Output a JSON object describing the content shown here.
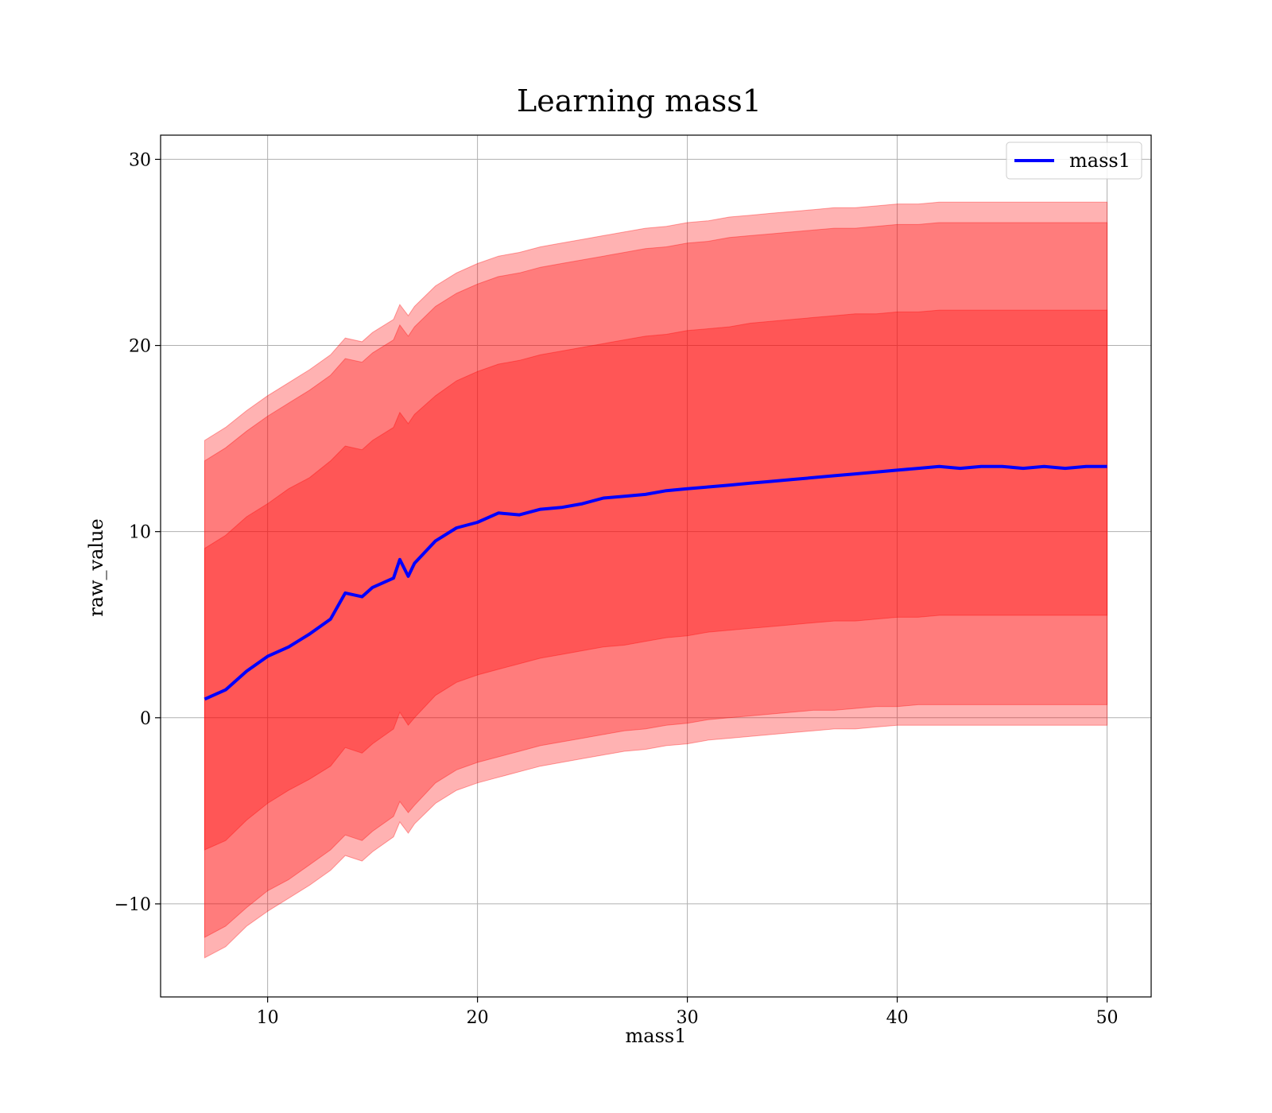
{
  "chart_data": {
    "type": "line",
    "title": "Learning mass1",
    "xlabel": "mass1",
    "ylabel": "raw_value",
    "xlim": [
      4.9,
      52.1
    ],
    "ylim": [
      -15.0,
      31.3
    ],
    "xticks": [
      10,
      20,
      30,
      40,
      50
    ],
    "yticks": [
      -10,
      0,
      10,
      20,
      30
    ],
    "xtick_labels": [
      "10",
      "20",
      "30",
      "40",
      "50"
    ],
    "ytick_labels": [
      "−10",
      "0",
      "10",
      "20",
      "30"
    ],
    "grid": true,
    "legend": {
      "position": "top-right",
      "entries": [
        "mass1"
      ]
    },
    "colors": {
      "line": "#0000ff",
      "band": "#ff0000",
      "grid": "#b0b0b0"
    },
    "x": [
      7,
      8,
      9,
      10,
      11,
      12,
      13,
      13.7,
      14.5,
      15,
      16,
      16.3,
      16.7,
      17,
      18,
      19,
      20,
      21,
      22,
      23,
      24,
      25,
      26,
      27,
      28,
      29,
      30,
      31,
      32,
      33,
      34,
      35,
      36,
      37,
      38,
      39,
      40,
      41,
      42,
      43,
      44,
      45,
      46,
      47,
      48,
      49,
      50
    ],
    "series": [
      {
        "name": "mass1",
        "values": [
          1.0,
          1.5,
          2.5,
          3.3,
          3.8,
          4.5,
          5.3,
          6.7,
          6.5,
          7.0,
          7.5,
          8.5,
          7.6,
          8.3,
          9.5,
          10.2,
          10.5,
          11.0,
          10.9,
          11.2,
          11.3,
          11.5,
          11.8,
          11.9,
          12.0,
          12.2,
          12.3,
          12.4,
          12.5,
          12.6,
          12.7,
          12.8,
          12.9,
          13.0,
          13.1,
          13.2,
          13.3,
          13.4,
          13.5,
          13.4,
          13.5,
          13.5,
          13.4,
          13.5,
          13.4,
          13.5,
          13.5
        ]
      }
    ],
    "bands": [
      {
        "level": "inner",
        "lower": [
          -7.1,
          -6.6,
          -5.5,
          -4.6,
          -3.9,
          -3.3,
          -2.6,
          -1.6,
          -1.9,
          -1.4,
          -0.6,
          0.3,
          -0.4,
          0.0,
          1.2,
          1.9,
          2.3,
          2.6,
          2.9,
          3.2,
          3.4,
          3.6,
          3.8,
          3.9,
          4.1,
          4.3,
          4.4,
          4.6,
          4.7,
          4.8,
          4.9,
          5.0,
          5.1,
          5.2,
          5.2,
          5.3,
          5.4,
          5.4,
          5.5,
          5.5,
          5.5,
          5.5,
          5.5,
          5.5,
          5.5,
          5.5,
          5.5
        ],
        "upper": [
          9.1,
          9.8,
          10.8,
          11.5,
          12.3,
          12.9,
          13.8,
          14.6,
          14.4,
          14.9,
          15.6,
          16.4,
          15.8,
          16.3,
          17.3,
          18.1,
          18.6,
          19.0,
          19.2,
          19.5,
          19.7,
          19.9,
          20.1,
          20.3,
          20.5,
          20.6,
          20.8,
          20.9,
          21.0,
          21.2,
          21.3,
          21.4,
          21.5,
          21.6,
          21.7,
          21.7,
          21.8,
          21.8,
          21.9,
          21.9,
          21.9,
          21.9,
          21.9,
          21.9,
          21.9,
          21.9,
          21.9
        ]
      },
      {
        "level": "middle",
        "lower": [
          -11.8,
          -11.2,
          -10.2,
          -9.3,
          -8.7,
          -7.9,
          -7.1,
          -6.3,
          -6.6,
          -6.1,
          -5.3,
          -4.5,
          -5.1,
          -4.7,
          -3.5,
          -2.8,
          -2.4,
          -2.1,
          -1.8,
          -1.5,
          -1.3,
          -1.1,
          -0.9,
          -0.7,
          -0.6,
          -0.4,
          -0.3,
          -0.1,
          0.0,
          0.1,
          0.2,
          0.3,
          0.4,
          0.4,
          0.5,
          0.6,
          0.6,
          0.7,
          0.7,
          0.7,
          0.7,
          0.7,
          0.7,
          0.7,
          0.7,
          0.7,
          0.7
        ],
        "upper": [
          13.8,
          14.5,
          15.4,
          16.2,
          16.9,
          17.6,
          18.4,
          19.3,
          19.1,
          19.6,
          20.3,
          21.1,
          20.5,
          21.0,
          22.1,
          22.8,
          23.3,
          23.7,
          23.9,
          24.2,
          24.4,
          24.6,
          24.8,
          25.0,
          25.2,
          25.3,
          25.5,
          25.6,
          25.8,
          25.9,
          26.0,
          26.1,
          26.2,
          26.3,
          26.3,
          26.4,
          26.5,
          26.5,
          26.6,
          26.6,
          26.6,
          26.6,
          26.6,
          26.6,
          26.6,
          26.6,
          26.6
        ]
      },
      {
        "level": "outer",
        "lower": [
          -12.9,
          -12.3,
          -11.2,
          -10.4,
          -9.7,
          -9.0,
          -8.2,
          -7.4,
          -7.7,
          -7.2,
          -6.4,
          -5.6,
          -6.2,
          -5.7,
          -4.6,
          -3.9,
          -3.5,
          -3.2,
          -2.9,
          -2.6,
          -2.4,
          -2.2,
          -2.0,
          -1.8,
          -1.7,
          -1.5,
          -1.4,
          -1.2,
          -1.1,
          -1.0,
          -0.9,
          -0.8,
          -0.7,
          -0.6,
          -0.6,
          -0.5,
          -0.4,
          -0.4,
          -0.4,
          -0.4,
          -0.4,
          -0.4,
          -0.4,
          -0.4,
          -0.4,
          -0.4,
          -0.4
        ],
        "upper": [
          14.9,
          15.6,
          16.5,
          17.3,
          18.0,
          18.7,
          19.5,
          20.4,
          20.2,
          20.7,
          21.4,
          22.2,
          21.6,
          22.1,
          23.2,
          23.9,
          24.4,
          24.8,
          25.0,
          25.3,
          25.5,
          25.7,
          25.9,
          26.1,
          26.3,
          26.4,
          26.6,
          26.7,
          26.9,
          27.0,
          27.1,
          27.2,
          27.3,
          27.4,
          27.4,
          27.5,
          27.6,
          27.6,
          27.7,
          27.7,
          27.7,
          27.7,
          27.7,
          27.7,
          27.7,
          27.7,
          27.7
        ]
      }
    ]
  }
}
